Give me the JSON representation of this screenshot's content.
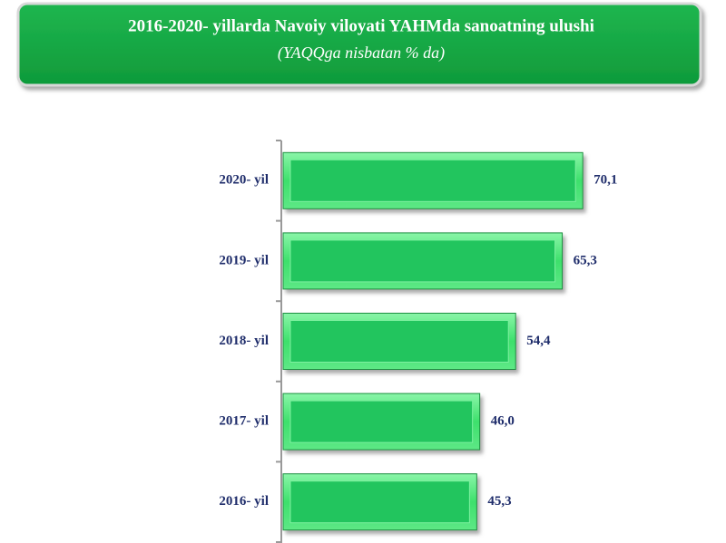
{
  "chart_data": {
    "type": "bar",
    "orientation": "horizontal",
    "title": "2016-2020- yillarda Navoiy viloyati YAHMda sanoatning ulushi",
    "subtitle": "(YAQQga nisbatan % da)",
    "categories": [
      "2020- yil",
      "2019- yil",
      "2018- yil",
      "2017- yil",
      "2016- yil"
    ],
    "values": [
      70.1,
      65.3,
      54.4,
      46.0,
      45.3
    ],
    "value_labels": [
      "70,1",
      "65,3",
      "54,4",
      "46,0",
      "45,3"
    ],
    "color": "#22c55e"
  }
}
